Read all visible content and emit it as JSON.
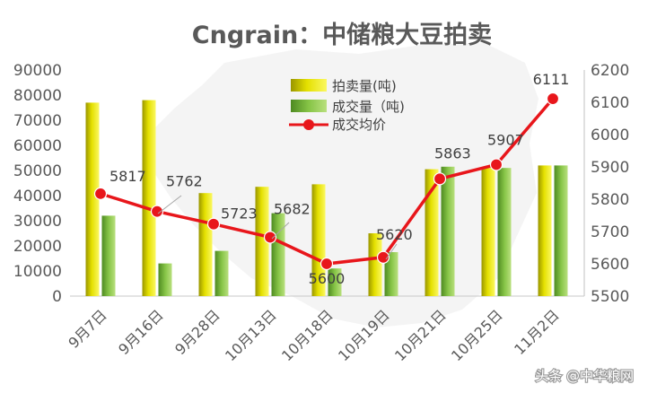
{
  "chart_data": {
    "type": "bar",
    "title": "Cngrain：中储粮大豆拍卖",
    "categories": [
      "9月7日",
      "9月16日",
      "9月28日",
      "10月13日",
      "10月18日",
      "10月19日",
      "10月21日",
      "10月25日",
      "11月2日"
    ],
    "series": [
      {
        "name": "拍卖量(吨)",
        "type": "bar",
        "axis": "left",
        "values": [
          77000,
          78000,
          41000,
          43500,
          44500,
          25000,
          50500,
          51000,
          52000
        ]
      },
      {
        "name": "成交量（吨)",
        "type": "bar",
        "axis": "left",
        "values": [
          32000,
          13000,
          18000,
          33000,
          11000,
          17500,
          51500,
          51000,
          52000
        ]
      },
      {
        "name": "成交均价",
        "type": "line",
        "axis": "right",
        "values": [
          5817,
          5762,
          5723,
          5682,
          5600,
          5620,
          5863,
          5907,
          6111
        ]
      }
    ],
    "y_left": {
      "min": 0,
      "max": 90000,
      "ticks": [
        "0",
        "10000",
        "20000",
        "30000",
        "40000",
        "50000",
        "60000",
        "70000",
        "80000",
        "90000"
      ]
    },
    "y_right": {
      "min": 5500,
      "max": 6200,
      "ticks": [
        "5500",
        "5600",
        "5700",
        "5800",
        "5900",
        "6000",
        "6100",
        "6200"
      ]
    },
    "data_labels": [
      "5817",
      "5762",
      "5723",
      "5682",
      "5600",
      "5620",
      "5863",
      "5907",
      "6111"
    ],
    "legend_position": "top-center",
    "grid": false,
    "colors": {
      "bar_auction": "#d4d000",
      "bar_deal": "#7bbd3a",
      "line": "#e8161b",
      "text": "#595959"
    }
  },
  "watermark": "头条 @中华粮网"
}
